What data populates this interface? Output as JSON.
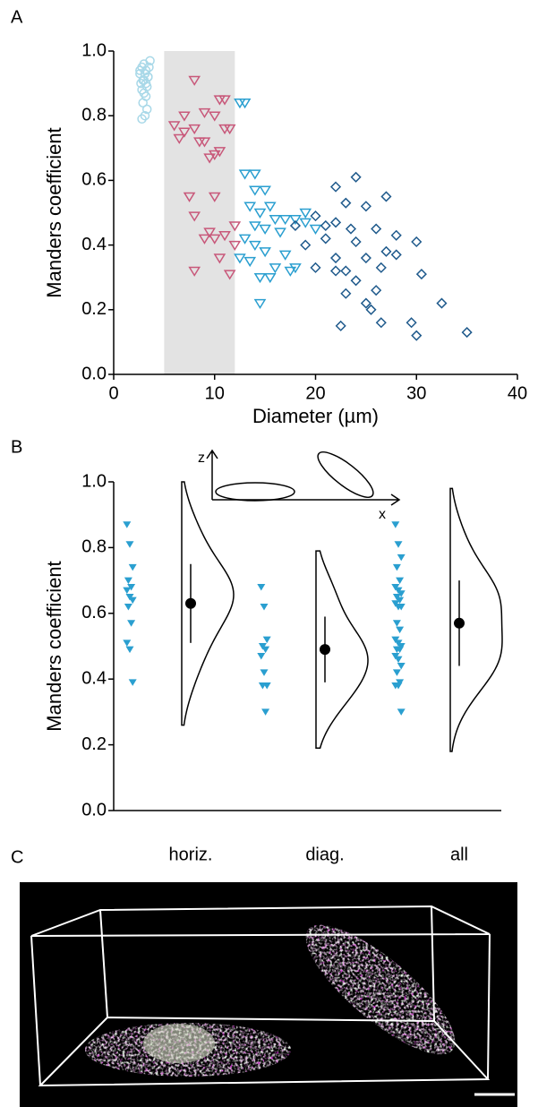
{
  "chart_data": [
    {
      "type": "scatter",
      "panel": "A",
      "xlabel": "Diameter (µm)",
      "ylabel": "Manders coefficient",
      "xlim": [
        0,
        40
      ],
      "ylim": [
        0,
        1
      ],
      "xticks": [
        0,
        10,
        20,
        30,
        40
      ],
      "yticks": [
        {
          "value": 0,
          "label": "0.0"
        },
        0.2,
        0.4,
        0.6,
        0.8,
        {
          "value": 1,
          "label": "1.0"
        }
      ],
      "highlight_xrange": [
        5,
        12
      ],
      "highlight_color": "#e3e3e3",
      "series": [
        {
          "color": "#a8d8e8",
          "marker": "circle",
          "x": [
            2.6,
            2.8,
            3.0,
            3.2,
            3.4,
            3.6,
            2.7,
            2.9,
            3.1,
            3.3,
            3.5,
            2.8,
            3.0,
            3.2,
            3.4,
            2.9,
            3.1,
            3.3,
            2.6,
            3.0,
            3.2,
            2.8
          ],
          "y": [
            0.93,
            0.95,
            0.96,
            0.94,
            0.92,
            0.97,
            0.9,
            0.91,
            0.93,
            0.89,
            0.95,
            0.88,
            0.87,
            0.86,
            0.92,
            0.84,
            0.8,
            0.82,
            0.94,
            0.91,
            0.9,
            0.79
          ]
        },
        {
          "color": "#c8587a",
          "marker": "triangle-down",
          "x": [
            8,
            11,
            7,
            9,
            10,
            10.5,
            6,
            7,
            8,
            11,
            11.5,
            8.5,
            9,
            6.5,
            10,
            10.5,
            9.5,
            10,
            7.5,
            8,
            9,
            9.5,
            10,
            11,
            12,
            10.5,
            8,
            11.5,
            12
          ],
          "y": [
            0.91,
            0.85,
            0.8,
            0.81,
            0.8,
            0.85,
            0.77,
            0.75,
            0.76,
            0.76,
            0.76,
            0.72,
            0.72,
            0.73,
            0.68,
            0.69,
            0.67,
            0.55,
            0.55,
            0.49,
            0.42,
            0.44,
            0.42,
            0.43,
            0.46,
            0.36,
            0.32,
            0.31,
            0.4
          ]
        },
        {
          "color": "#2a9fd0",
          "marker": "triangle-down",
          "x": [
            12.5,
            13,
            13,
            14,
            14,
            15,
            13.5,
            14.5,
            15.5,
            16,
            17,
            18,
            19,
            14,
            15,
            16.5,
            13,
            14,
            15,
            17,
            13.5,
            16,
            18,
            14.5,
            15.5,
            17.5,
            14.5,
            12.5,
            19,
            20
          ],
          "y": [
            0.84,
            0.84,
            0.62,
            0.62,
            0.57,
            0.57,
            0.52,
            0.5,
            0.52,
            0.48,
            0.48,
            0.48,
            0.47,
            0.46,
            0.45,
            0.44,
            0.42,
            0.4,
            0.38,
            0.37,
            0.35,
            0.33,
            0.33,
            0.3,
            0.3,
            0.32,
            0.22,
            0.36,
            0.5,
            0.45
          ]
        },
        {
          "color": "#1f5a8c",
          "marker": "diamond",
          "x": [
            24,
            22,
            27,
            23,
            25,
            20,
            21,
            22,
            23.5,
            26,
            21,
            24,
            28,
            30,
            19,
            22,
            25,
            27,
            28,
            20,
            22,
            23,
            26.5,
            30.5,
            24,
            26,
            23,
            25,
            32.5,
            22.5,
            26.5,
            29.5,
            25.5,
            30,
            35,
            18
          ],
          "y": [
            0.61,
            0.58,
            0.55,
            0.53,
            0.52,
            0.49,
            0.46,
            0.47,
            0.45,
            0.45,
            0.42,
            0.41,
            0.43,
            0.41,
            0.4,
            0.36,
            0.36,
            0.38,
            0.37,
            0.33,
            0.32,
            0.32,
            0.33,
            0.31,
            0.29,
            0.26,
            0.25,
            0.22,
            0.22,
            0.15,
            0.16,
            0.16,
            0.2,
            0.12,
            0.13,
            0.46
          ]
        }
      ]
    },
    {
      "type": "violin",
      "panel": "B",
      "ylabel": "Manders coefficient",
      "annotations": [
        "z",
        "x"
      ],
      "ylim": [
        0,
        1
      ],
      "yticks": [
        {
          "value": 0,
          "label": "0.0"
        },
        0.2,
        0.4,
        0.6,
        0.8,
        {
          "value": 1,
          "label": "1.0"
        }
      ],
      "categories": [
        "horiz.",
        "diag.",
        "all"
      ],
      "color": "#2a9fd0",
      "groups": [
        {
          "values": [
            0.87,
            0.81,
            0.74,
            0.7,
            0.68,
            0.67,
            0.65,
            0.64,
            0.62,
            0.57,
            0.51,
            0.49,
            0.39
          ],
          "mean": 0.63,
          "error": 0.12,
          "extent": [
            0.26,
            1.0
          ]
        },
        {
          "values": [
            0.68,
            0.62,
            0.52,
            0.5,
            0.49,
            0.47,
            0.42,
            0.38,
            0.38,
            0.3
          ],
          "mean": 0.49,
          "error": 0.1,
          "extent": [
            0.19,
            0.79
          ]
        },
        {
          "values": [
            0.87,
            0.81,
            0.77,
            0.74,
            0.7,
            0.68,
            0.67,
            0.66,
            0.65,
            0.64,
            0.63,
            0.62,
            0.62,
            0.57,
            0.55,
            0.52,
            0.51,
            0.5,
            0.49,
            0.49,
            0.47,
            0.46,
            0.44,
            0.42,
            0.39,
            0.38,
            0.38,
            0.3
          ],
          "mean": 0.57,
          "error": 0.13,
          "extent": [
            0.18,
            0.98
          ]
        }
      ]
    }
  ],
  "image_panel": {
    "panel": "C"
  }
}
